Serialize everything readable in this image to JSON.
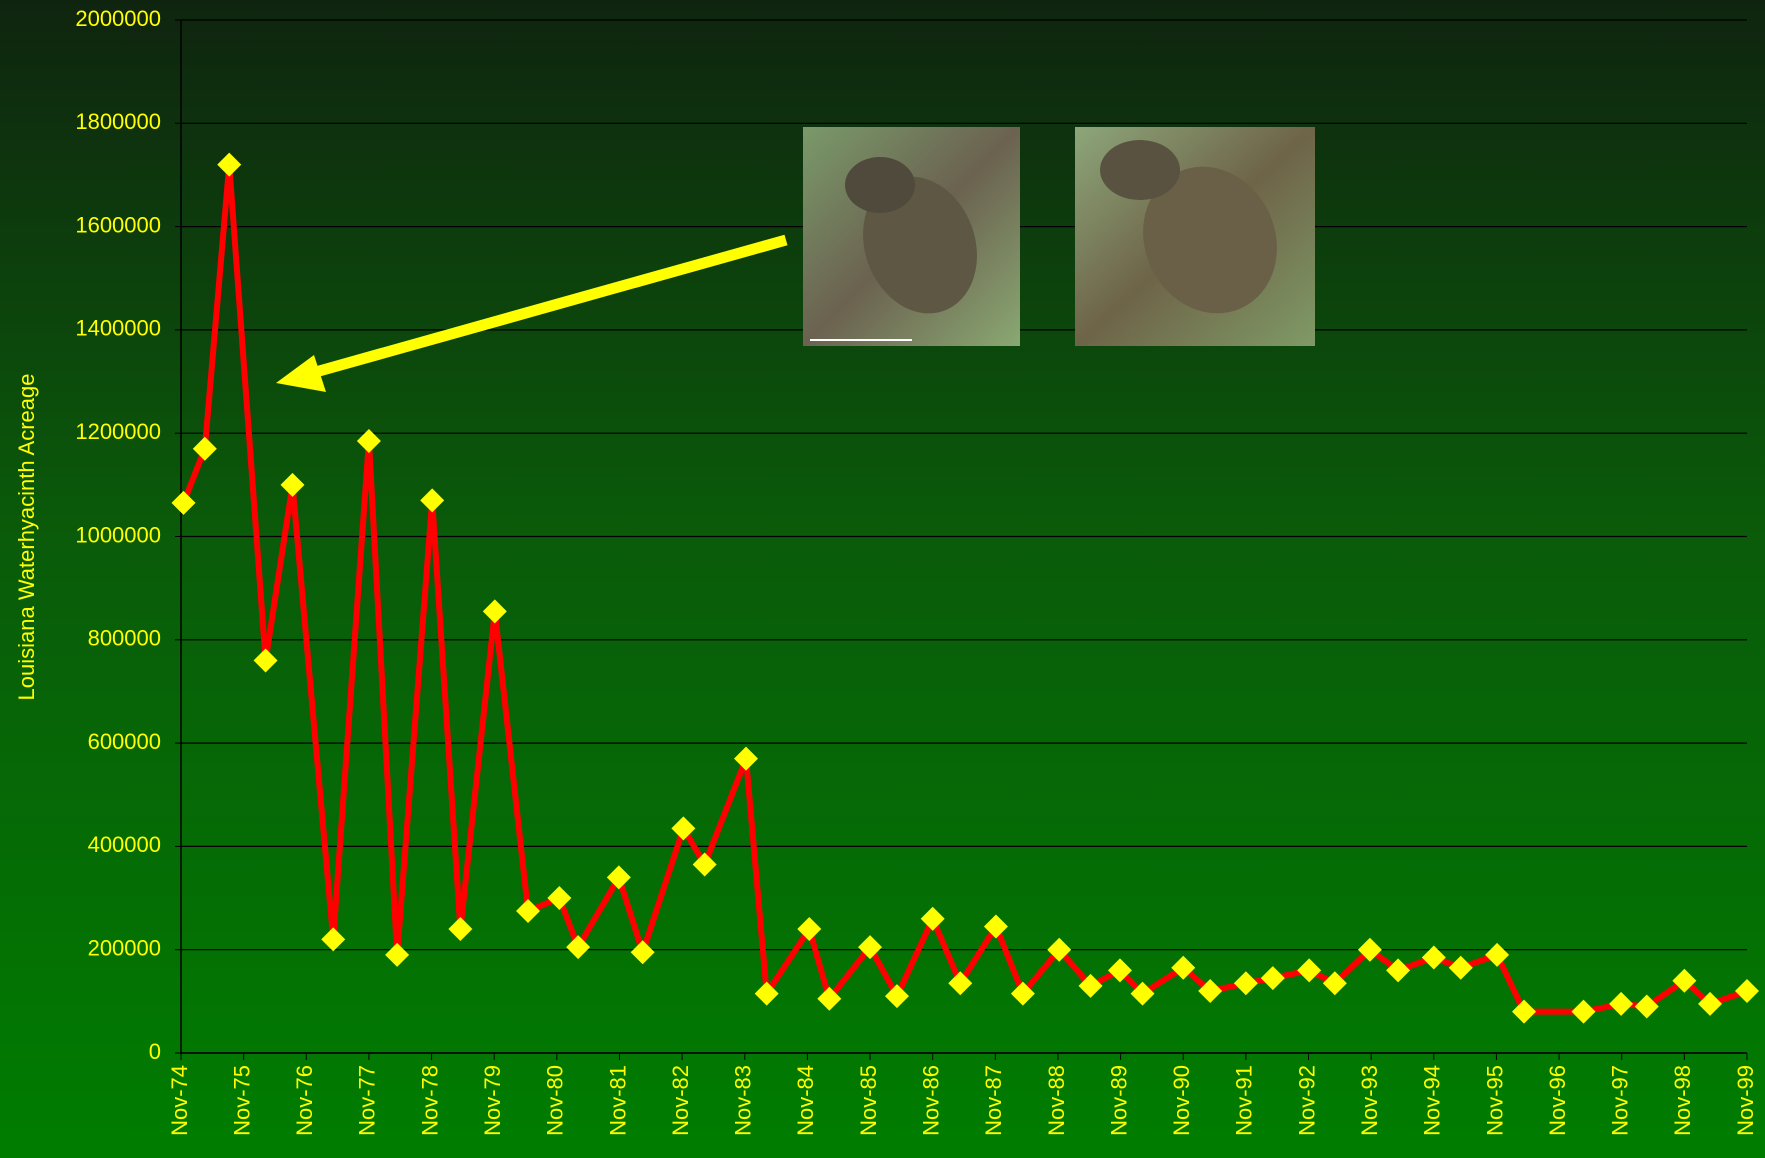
{
  "chart_data": {
    "type": "line",
    "ylabel": "Louisiana Waterhyacinth Acreage",
    "x": [
      1974.87,
      1975.21,
      1975.6,
      1976.18,
      1976.61,
      1977.26,
      1977.83,
      1978.28,
      1978.84,
      1979.29,
      1979.84,
      1980.37,
      1980.87,
      1981.17,
      1981.82,
      1982.2,
      1982.85,
      1983.19,
      1983.85,
      1984.18,
      1984.86,
      1985.18,
      1985.83,
      1986.26,
      1986.83,
      1987.27,
      1987.84,
      1988.27,
      1988.85,
      1989.35,
      1989.82,
      1990.18,
      1990.83,
      1991.26,
      1991.83,
      1992.26,
      1992.84,
      1993.25,
      1993.81,
      1994.26,
      1994.83,
      1995.26,
      1995.84,
      1996.27,
      1997.22,
      1997.82,
      1998.23,
      1998.83,
      1999.24,
      1999.83
    ],
    "series": [
      {
        "name": "Acreage",
        "color": "#ff0000",
        "marker_color": "#ffff00",
        "values": [
          1065000,
          1170000,
          1720000,
          760000,
          1100000,
          220000,
          1185000,
          190000,
          1070000,
          240000,
          855000,
          275000,
          300000,
          205000,
          340000,
          195000,
          435000,
          365000,
          570000,
          115000,
          240000,
          105000,
          205000,
          110000,
          260000,
          135000,
          245000,
          115000,
          200000,
          130000,
          160000,
          115000,
          165000,
          120000,
          135000,
          145000,
          160000,
          135000,
          200000,
          160000,
          185000,
          165000,
          190000,
          80000,
          80000,
          95000,
          90000,
          140000,
          95000,
          120000
        ]
      }
    ],
    "xlim": [
      1974.83,
      1999.83
    ],
    "xticks": [
      {
        "value": 1974.83,
        "label": "Nov-74"
      },
      {
        "value": 1975.83,
        "label": "Nov-75"
      },
      {
        "value": 1976.83,
        "label": "Nov-76"
      },
      {
        "value": 1977.83,
        "label": "Nov-77"
      },
      {
        "value": 1978.83,
        "label": "Nov-78"
      },
      {
        "value": 1979.83,
        "label": "Nov-79"
      },
      {
        "value": 1980.83,
        "label": "Nov-80"
      },
      {
        "value": 1981.83,
        "label": "Nov-81"
      },
      {
        "value": 1982.83,
        "label": "Nov-82"
      },
      {
        "value": 1983.83,
        "label": "Nov-83"
      },
      {
        "value": 1984.83,
        "label": "Nov-84"
      },
      {
        "value": 1985.83,
        "label": "Nov-85"
      },
      {
        "value": 1986.83,
        "label": "Nov-86"
      },
      {
        "value": 1987.83,
        "label": "Nov-87"
      },
      {
        "value": 1988.83,
        "label": "Nov-88"
      },
      {
        "value": 1989.83,
        "label": "Nov-89"
      },
      {
        "value": 1990.83,
        "label": "Nov-90"
      },
      {
        "value": 1991.83,
        "label": "Nov-91"
      },
      {
        "value": 1992.83,
        "label": "Nov-92"
      },
      {
        "value": 1993.83,
        "label": "Nov-93"
      },
      {
        "value": 1994.83,
        "label": "Nov-94"
      },
      {
        "value": 1995.83,
        "label": "Nov-95"
      },
      {
        "value": 1996.83,
        "label": "Nov-96"
      },
      {
        "value": 1997.83,
        "label": "Nov-97"
      },
      {
        "value": 1998.83,
        "label": "Nov-98"
      },
      {
        "value": 1999.83,
        "label": "Nov-99"
      }
    ],
    "ylim": [
      0,
      2000000
    ],
    "yticks": [
      0,
      200000,
      400000,
      600000,
      800000,
      1000000,
      1200000,
      1400000,
      1600000,
      1800000,
      2000000
    ],
    "grid": true
  }
}
